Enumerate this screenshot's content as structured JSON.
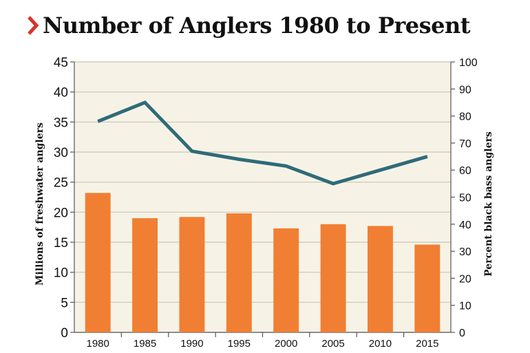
{
  "chart_data": {
    "type": "bar+line",
    "title": "Number of Anglers 1980 to Present",
    "categories": [
      "1980",
      "1985",
      "1990",
      "1995",
      "2000",
      "2005",
      "2010",
      "2015"
    ],
    "bars": {
      "axis": "left",
      "values": [
        23.2,
        19.0,
        19.2,
        19.8,
        17.3,
        18.0,
        17.7,
        14.6
      ],
      "color": "#f07f33"
    },
    "line": {
      "axis": "right",
      "values": [
        78,
        85,
        67,
        64,
        61.5,
        55,
        60,
        65
      ],
      "color": "#2f6b78"
    },
    "y_left": {
      "label": "Millions of freshwater anglers",
      "ylim": [
        0,
        45
      ],
      "ticks": [
        "0",
        "5",
        "10",
        "15",
        "20",
        "25",
        "30",
        "35",
        "40",
        "45"
      ]
    },
    "y_right": {
      "label": "Percent black bass anglers",
      "ylim": [
        0,
        100
      ],
      "ticks": [
        "0",
        "10",
        "20",
        "30",
        "40",
        "50",
        "60",
        "70",
        "80",
        "90",
        "100"
      ]
    },
    "grid": true,
    "background_color": "#f6f3e6",
    "grid_color": "#c9c6b6",
    "title_accent_color": "#d8342c"
  }
}
